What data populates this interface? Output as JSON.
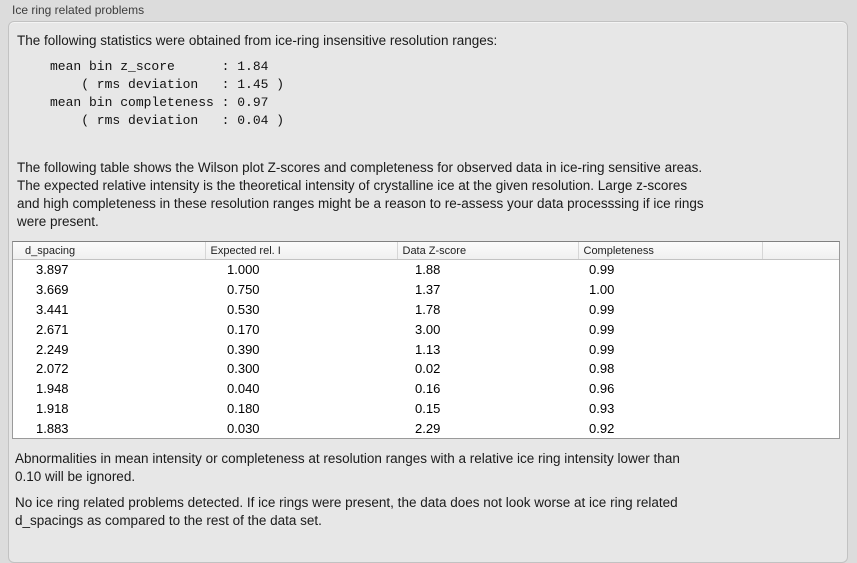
{
  "panel": {
    "title": "Ice ring related problems"
  },
  "intro_text": "The following statistics were obtained from ice-ring insensitive resolution ranges:",
  "stats_block": {
    "lines": [
      "mean bin z_score      : 1.84",
      "    ( rms deviation   : 1.45 )",
      "mean bin completeness : 0.97",
      "    ( rms deviation   : 0.04 )"
    ]
  },
  "description": {
    "lines": [
      "The following table shows the Wilson plot Z-scores and completeness for observed data in ice-ring sensitive areas.",
      "The expected relative intensity is the theoretical intensity of crystalline ice at the given resolution. Large z-scores",
      "and high completeness in these resolution ranges might be a reason to re-assess your data processsing if ice rings",
      "were present."
    ]
  },
  "table": {
    "columns": [
      "d_spacing",
      "Expected rel. I",
      "Data Z-score",
      "Completeness",
      ""
    ],
    "rows": [
      [
        "3.897",
        "1.000",
        "1.88",
        "0.99"
      ],
      [
        "3.669",
        "0.750",
        "1.37",
        "1.00"
      ],
      [
        "3.441",
        "0.530",
        "1.78",
        "0.99"
      ],
      [
        "2.671",
        "0.170",
        "3.00",
        "0.99"
      ],
      [
        "2.249",
        "0.390",
        "1.13",
        "0.99"
      ],
      [
        "2.072",
        "0.300",
        "0.02",
        "0.98"
      ],
      [
        "1.948",
        "0.040",
        "0.16",
        "0.96"
      ],
      [
        "1.918",
        "0.180",
        "0.15",
        "0.93"
      ],
      [
        "1.883",
        "0.030",
        "2.29",
        "0.92"
      ]
    ]
  },
  "notes": {
    "ignore_note": {
      "lines": [
        "Abnormalities in mean intensity or completeness at resolution ranges with a relative ice ring intensity lower than",
        "0.10 will be ignored."
      ]
    },
    "conclusion": {
      "lines": [
        "No ice ring related problems detected. If ice rings were present, the data does not look worse at ice ring related",
        "d_spacings as compared to the rest of the data set."
      ]
    }
  },
  "colors": {
    "outer_background": "#dcdcdc",
    "panel_background": "#e7e7e7",
    "panel_border": "#c2c2c2",
    "table_background": "#ffffff",
    "table_border": "#9a9a9a",
    "header_background": "#f5f5f5",
    "text": "#1a1a1a"
  }
}
